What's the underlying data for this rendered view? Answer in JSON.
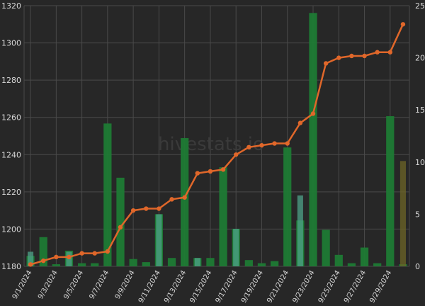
{
  "watermark": "hivestats.io",
  "chart_data": {
    "type": "bar",
    "subtype": "bar-line-combo",
    "grid": true,
    "legend": "none",
    "left_axis": {
      "range": [
        1180,
        1320
      ],
      "ticks": [
        1180,
        1200,
        1220,
        1240,
        1260,
        1280,
        1300,
        1320
      ]
    },
    "right_axis": {
      "range": [
        0,
        25
      ],
      "ticks": [
        0,
        5,
        10,
        15,
        20,
        25
      ]
    },
    "x_tick_labels": [
      "9/1/2024",
      "9/3/2024",
      "9/5/2024",
      "9/7/2024",
      "9/9/2024",
      "9/11/2024",
      "9/13/2024",
      "9/15/2024",
      "9/17/2024",
      "9/19/2024",
      "9/21/2024",
      "9/23/2024",
      "9/25/2024",
      "9/27/2024",
      "9/29/2024"
    ],
    "categories": [
      "9/1/2024",
      "9/2/2024",
      "9/3/2024",
      "9/4/2024",
      "9/5/2024",
      "9/6/2024",
      "9/7/2024",
      "9/8/2024",
      "9/9/2024",
      "9/10/2024",
      "9/11/2024",
      "9/12/2024",
      "9/13/2024",
      "9/14/2024",
      "9/15/2024",
      "9/16/2024",
      "9/17/2024",
      "9/18/2024",
      "9/19/2024",
      "9/20/2024",
      "9/21/2024",
      "9/22/2024",
      "9/23/2024",
      "9/24/2024",
      "9/25/2024",
      "9/26/2024",
      "9/27/2024",
      "9/28/2024",
      "9/29/2024",
      "9/30/2024"
    ],
    "series": [
      {
        "kind": "bar",
        "axis": "right",
        "color": "#1e7a34",
        "values": [
          1.0,
          2.8,
          0.2,
          1.5,
          0.3,
          0.3,
          13.7,
          8.5,
          0.7,
          0.4,
          5.0,
          0.8,
          12.3,
          0.8,
          0.8,
          9.5,
          3.6,
          0.6,
          0.3,
          0.5,
          11.4,
          4.4,
          24.3,
          3.5,
          1.1,
          0.3,
          1.8,
          0.3,
          14.4,
          0.2
        ]
      },
      {
        "kind": "bar",
        "axis": "right",
        "color": "#4fa38a",
        "values": [
          1.4,
          0,
          0,
          1.4,
          0,
          0,
          0,
          0,
          0,
          0,
          5.0,
          0,
          0,
          0.8,
          0,
          0,
          3.6,
          0,
          0,
          0,
          0,
          6.8,
          0,
          0,
          0,
          0,
          0,
          0,
          0,
          0
        ]
      },
      {
        "kind": "bar",
        "axis": "right",
        "color": "#6e6627",
        "values": [
          0,
          0,
          0,
          0,
          0,
          0,
          0,
          0,
          0,
          0,
          0,
          0,
          0,
          0,
          0,
          0,
          0,
          0,
          0,
          0,
          0,
          0,
          0,
          0,
          0,
          0,
          0,
          0,
          0,
          10.1
        ]
      },
      {
        "kind": "line",
        "axis": "left",
        "color": "#e0672a",
        "values": [
          1181,
          1183,
          1185,
          1185,
          1187,
          1187,
          1188,
          1201,
          1210,
          1211,
          1211,
          1216,
          1217,
          1230,
          1231,
          1232,
          1240,
          1244,
          1245,
          1246,
          1246,
          1257,
          1262,
          1289,
          1292,
          1293,
          1293,
          1295,
          1295,
          1310
        ]
      }
    ]
  }
}
